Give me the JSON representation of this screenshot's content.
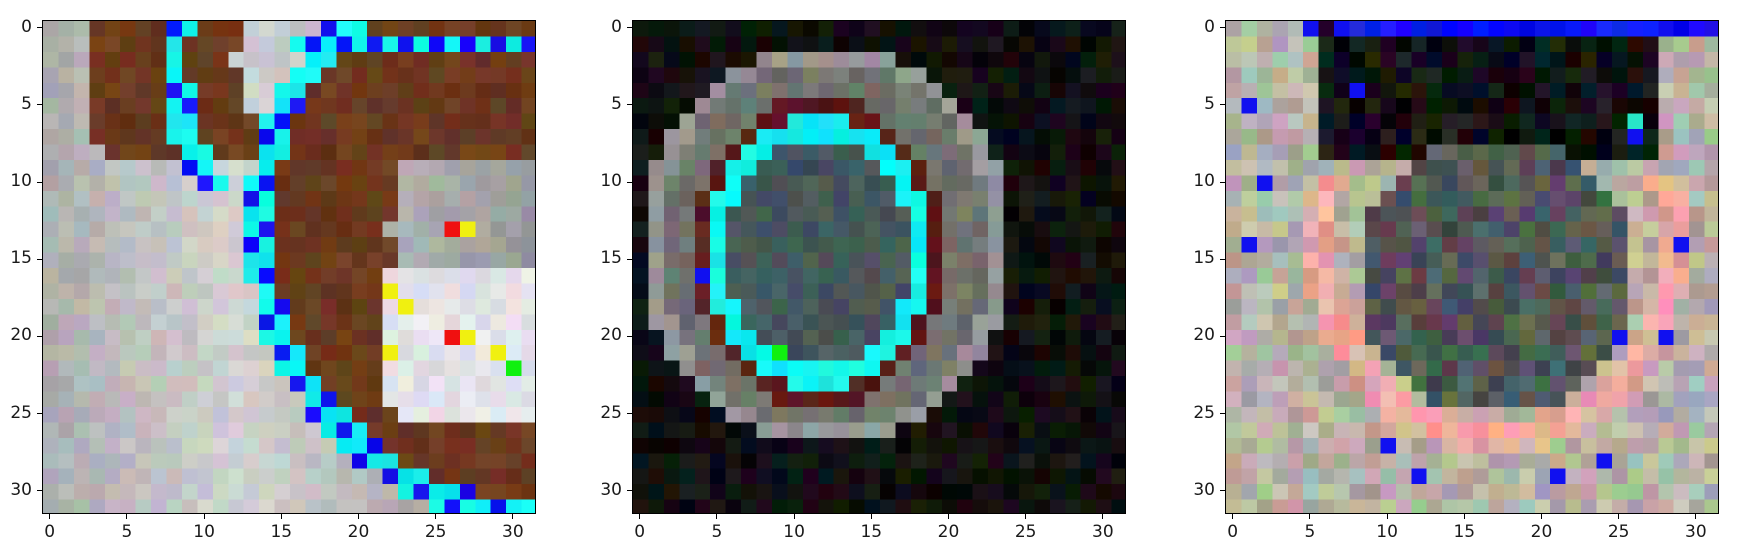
{
  "chart_data": [
    {
      "type": "heatmap",
      "panel_id": "left",
      "description_name": "panel-1-image",
      "xlim": [
        0,
        31
      ],
      "ylim": [
        31,
        0
      ],
      "xticks": [
        0,
        5,
        10,
        15,
        20,
        25,
        30
      ],
      "yticks": [
        0,
        5,
        10,
        15,
        20,
        25,
        30
      ],
      "xtick_labels": [
        "0",
        "5",
        "10",
        "15",
        "20",
        "25",
        "30"
      ],
      "ytick_labels": [
        "0",
        "5",
        "10",
        "15",
        "20",
        "25",
        "30"
      ],
      "grid": false,
      "image_size": [
        32,
        32
      ]
    },
    {
      "type": "heatmap",
      "panel_id": "middle",
      "xlim": [
        0,
        31
      ],
      "ylim": [
        31,
        0
      ],
      "xticks": [
        0,
        5,
        10,
        15,
        20,
        25,
        30
      ],
      "yticks": [
        0,
        5,
        10,
        15,
        20,
        25,
        30
      ],
      "xtick_labels": [
        "0",
        "5",
        "10",
        "15",
        "20",
        "25",
        "30"
      ],
      "ytick_labels": [
        "0",
        "5",
        "10",
        "15",
        "20",
        "25",
        "30"
      ],
      "grid": false,
      "image_size": [
        32,
        32
      ]
    },
    {
      "type": "heatmap",
      "panel_id": "right",
      "xlim": [
        0,
        31
      ],
      "ylim": [
        31,
        0
      ],
      "xticks": [
        0,
        5,
        10,
        15,
        20,
        25,
        30
      ],
      "yticks": [
        0,
        5,
        10,
        15,
        20,
        25,
        30
      ],
      "xtick_labels": [
        "0",
        "5",
        "10",
        "15",
        "20",
        "25",
        "30"
      ],
      "ytick_labels": [
        "0",
        "5",
        "10",
        "15",
        "20",
        "25",
        "30"
      ],
      "grid": false,
      "image_size": [
        32,
        32
      ]
    }
  ],
  "colors": {
    "highlight_cyan": "#14f0ec",
    "highlight_blue": "#1010f0",
    "highlight_yellow": "#f0f010",
    "highlight_red": "#f01010",
    "highlight_green": "#10f010",
    "background_black": "#111111",
    "brown": "#6b3a1e",
    "gray": "#9a9a9a",
    "pink": "#e8a8a0"
  }
}
